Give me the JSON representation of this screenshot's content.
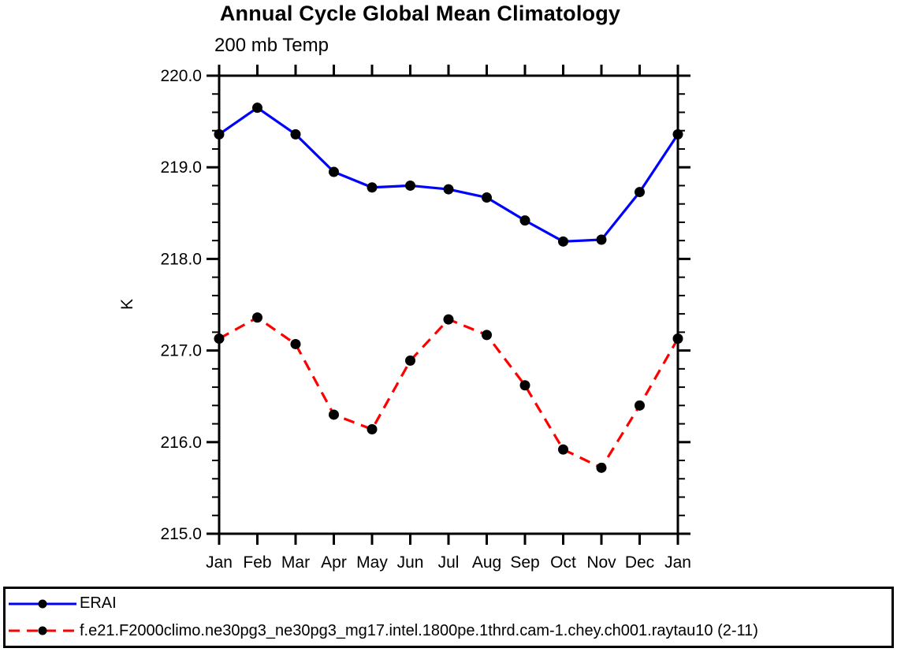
{
  "header": {
    "title": "Annual Cycle Global Mean Climatology",
    "subtitle": "200 mb Temp"
  },
  "chart_data": {
    "type": "line",
    "title": "Annual Cycle Global Mean Climatology",
    "subtitle": "200 mb Temp",
    "ylabel": "K",
    "xlabel": "",
    "ylim": [
      215.0,
      220.0
    ],
    "ytick_major_step": 1.0,
    "ytick_minor_step": 0.2,
    "y_labels": [
      "215.0",
      "216.0",
      "217.0",
      "218.0",
      "219.0",
      "220.0"
    ],
    "x_labels": [
      "Jan",
      "Feb",
      "Mar",
      "Apr",
      "May",
      "Jun",
      "Jul",
      "Aug",
      "Sep",
      "Oct",
      "Nov",
      "Dec",
      "Jan"
    ],
    "grid": "off",
    "legend_position": "bottom-box",
    "frame_color": "#000000",
    "marker_shape": "filled-circle",
    "series": [
      {
        "name": "ERAI",
        "color": "#0000ff",
        "line_style": "solid",
        "dash": "",
        "marker_color": "#000000",
        "values": [
          219.36,
          219.65,
          219.36,
          218.95,
          218.78,
          218.8,
          218.76,
          218.67,
          218.42,
          218.19,
          218.21,
          218.73,
          219.36
        ]
      },
      {
        "name": "f.e21.F2000climo.ne30pg3_ne30pg3_mg17.intel.1800pe.1thrd.cam-1.chey.ch001.raytau10 (2-11)",
        "color": "#ff0000",
        "line_style": "dashed",
        "dash": "14,9",
        "marker_color": "#000000",
        "values": [
          217.13,
          217.36,
          217.07,
          216.3,
          216.14,
          216.89,
          217.34,
          217.17,
          216.62,
          215.92,
          215.72,
          216.4,
          217.13
        ]
      }
    ]
  }
}
